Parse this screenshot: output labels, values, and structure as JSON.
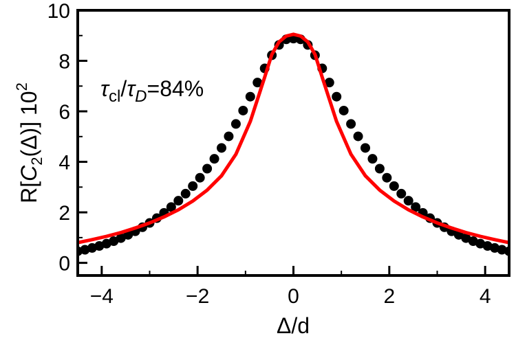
{
  "chart_data": {
    "type": "scatter",
    "xlabel": "Δ/d",
    "ylabel": "R[C2(Δ)] 10^2",
    "ylabel_parts": {
      "prefix": "R[",
      "C": "C",
      "sub": "2",
      "mid": "(Δ)] 10",
      "sup": "2"
    },
    "annotation": "τcl/τD=84%",
    "annotation_parts": {
      "tau1": "τ",
      "sub1": "cl",
      "slash": "/",
      "tau2": "τ",
      "sub2": "D",
      "rest": "=84%"
    },
    "xlim": [
      -4.5,
      4.5
    ],
    "ylim": [
      -0.5,
      10
    ],
    "xticks": [
      -4,
      -2,
      0,
      2,
      4
    ],
    "xtick_labels": [
      "−4",
      "−2",
      "0",
      "2",
      "4"
    ],
    "yticks": [
      0,
      2,
      4,
      6,
      8,
      10
    ],
    "ytick_labels": [
      "0",
      "2",
      "4",
      "6",
      "8",
      "10"
    ],
    "grid": false,
    "series": [
      {
        "kind": "points",
        "color": "#000000",
        "x": [
          -4.5,
          -4.35,
          -4.2,
          -4.05,
          -3.9,
          -3.75,
          -3.6,
          -3.45,
          -3.3,
          -3.15,
          -3.0,
          -2.85,
          -2.7,
          -2.55,
          -2.4,
          -2.25,
          -2.1,
          -1.95,
          -1.8,
          -1.65,
          -1.5,
          -1.35,
          -1.2,
          -1.05,
          -0.9,
          -0.75,
          -0.6,
          -0.45,
          -0.3,
          -0.15,
          0.0,
          0.15,
          0.3,
          0.45,
          0.6,
          0.75,
          0.9,
          1.05,
          1.2,
          1.35,
          1.5,
          1.65,
          1.8,
          1.95,
          2.1,
          2.25,
          2.4,
          2.55,
          2.7,
          2.85,
          3.0,
          3.15,
          3.3,
          3.45,
          3.6,
          3.75,
          3.9,
          4.05,
          4.2,
          4.35,
          4.5
        ],
        "y": [
          0.46,
          0.52,
          0.59,
          0.67,
          0.76,
          0.86,
          0.98,
          1.11,
          1.25,
          1.41,
          1.58,
          1.77,
          1.98,
          2.21,
          2.46,
          2.74,
          3.04,
          3.37,
          3.73,
          4.12,
          4.55,
          5.01,
          5.5,
          6.03,
          6.58,
          7.14,
          7.7,
          8.22,
          8.63,
          8.85,
          8.88,
          8.85,
          8.63,
          8.22,
          7.7,
          7.14,
          6.58,
          6.03,
          5.5,
          5.01,
          4.55,
          4.12,
          3.73,
          3.37,
          3.04,
          2.74,
          2.46,
          2.21,
          1.98,
          1.77,
          1.58,
          1.41,
          1.25,
          1.11,
          0.98,
          0.86,
          0.76,
          0.67,
          0.59,
          0.52,
          0.46
        ]
      },
      {
        "kind": "line",
        "color": "#ff0000",
        "x": [
          -4.5,
          -4.2,
          -3.9,
          -3.6,
          -3.3,
          -3.0,
          -2.7,
          -2.4,
          -2.1,
          -1.8,
          -1.5,
          -1.2,
          -0.9,
          -0.6,
          -0.45,
          -0.3,
          -0.15,
          0.0,
          0.15,
          0.3,
          0.45,
          0.6,
          0.9,
          1.2,
          1.5,
          1.8,
          2.1,
          2.4,
          2.7,
          3.0,
          3.3,
          3.6,
          3.9,
          4.2,
          4.5
        ],
        "y": [
          0.8,
          0.92,
          1.05,
          1.2,
          1.38,
          1.58,
          1.82,
          2.1,
          2.45,
          2.88,
          3.45,
          4.3,
          5.6,
          7.35,
          8.25,
          8.75,
          8.98,
          9.05,
          8.98,
          8.75,
          8.25,
          7.35,
          5.6,
          4.3,
          3.45,
          2.88,
          2.45,
          2.1,
          1.82,
          1.58,
          1.38,
          1.2,
          1.05,
          0.92,
          0.8
        ]
      }
    ]
  }
}
